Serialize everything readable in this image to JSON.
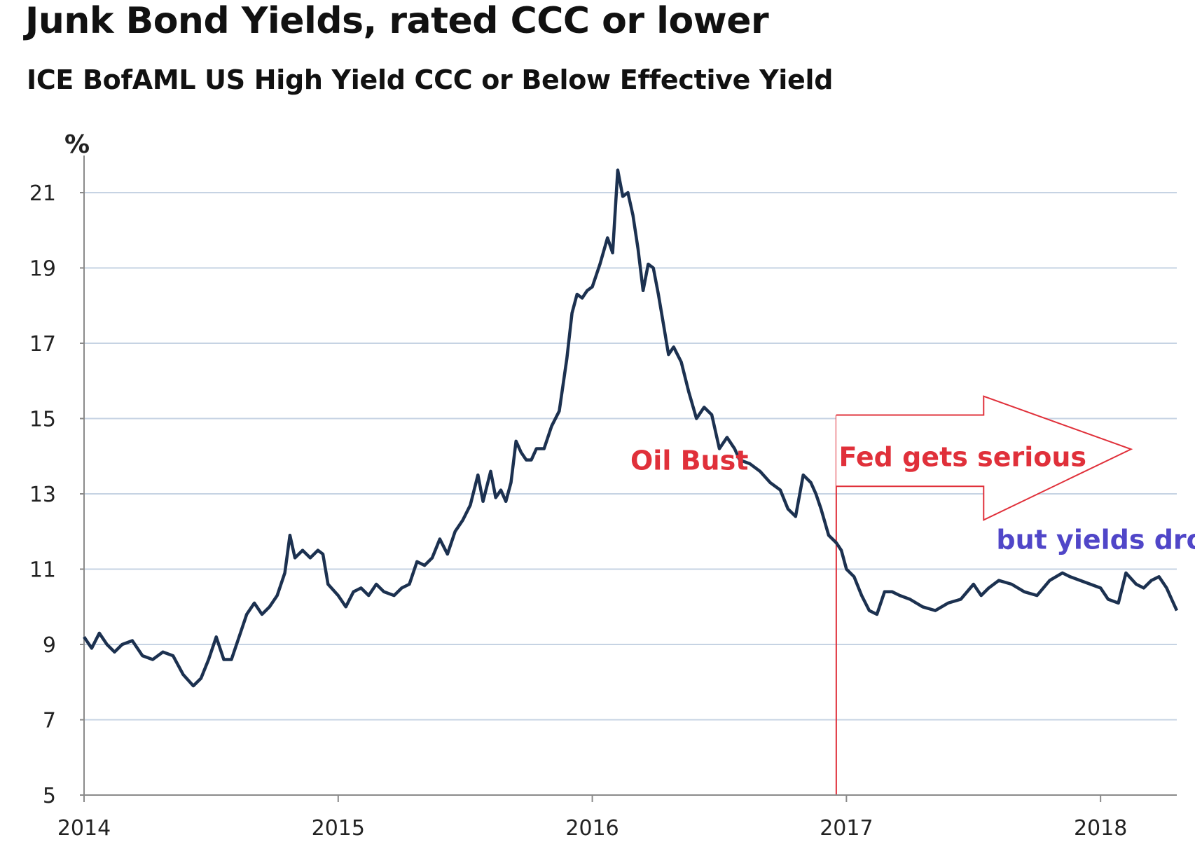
{
  "chart_data": {
    "type": "line",
    "title": "Junk Bond Yields, rated CCC or lower",
    "subtitle": "ICE BofAML US High Yield CCC or Below Effective Yield",
    "ylabel": "%",
    "xlabel": "",
    "ylim": [
      5,
      21.8
    ],
    "yticks": [
      5,
      7,
      9,
      11,
      13,
      15,
      17,
      19,
      21
    ],
    "xlim": [
      2014.0,
      2018.3
    ],
    "xticks": [
      2014,
      2015,
      2016,
      2017,
      2018
    ],
    "grid": true,
    "colors": {
      "line": "#1c3150",
      "grid": "#c6d3e3",
      "axis": "#8a8a8a",
      "fed": "#e0303a",
      "drop": "#5046c8"
    },
    "series": [
      {
        "x": [
          2014.0,
          2014.03,
          2014.06,
          2014.09,
          2014.12,
          2014.15,
          2014.19,
          2014.23,
          2014.27,
          2014.31,
          2014.35,
          2014.39,
          2014.43,
          2014.46,
          2014.49,
          2014.52,
          2014.55,
          2014.58,
          2014.61,
          2014.64,
          2014.67,
          2014.7,
          2014.73,
          2014.76,
          2014.79,
          2014.81,
          2014.83,
          2014.86,
          2014.89,
          2014.92,
          2014.94,
          2014.96,
          2015.0,
          2015.03,
          2015.06,
          2015.09,
          2015.12,
          2015.15,
          2015.18,
          2015.22,
          2015.25,
          2015.28,
          2015.31,
          2015.34,
          2015.37,
          2015.4,
          2015.43,
          2015.46,
          2015.49,
          2015.52,
          2015.55,
          2015.57,
          2015.6,
          2015.62,
          2015.64,
          2015.66,
          2015.68,
          2015.7,
          2015.72,
          2015.74,
          2015.76,
          2015.78,
          2015.81,
          2015.84,
          2015.87,
          2015.9,
          2015.92,
          2015.94,
          2015.96,
          2015.98,
          2016.0,
          2016.03,
          2016.06,
          2016.08,
          2016.1,
          2016.12,
          2016.14,
          2016.16,
          2016.18,
          2016.2,
          2016.22,
          2016.24,
          2016.26,
          2016.28,
          2016.3,
          2016.32,
          2016.35,
          2016.38,
          2016.41,
          2016.44,
          2016.47,
          2016.5,
          2016.53,
          2016.56,
          2016.58,
          2016.62,
          2016.66,
          2016.7,
          2016.74,
          2016.77,
          2016.8,
          2016.83,
          2016.86,
          2016.88,
          2016.9,
          2016.93,
          2016.96,
          2016.98,
          2017.0,
          2017.03,
          2017.06,
          2017.09,
          2017.12,
          2017.15,
          2017.18,
          2017.21,
          2017.25,
          2017.3,
          2017.35,
          2017.4,
          2017.45,
          2017.5,
          2017.53,
          2017.56,
          2017.6,
          2017.65,
          2017.7,
          2017.75,
          2017.8,
          2017.85,
          2017.88,
          2017.92,
          2017.96,
          2018.0,
          2018.03,
          2018.07,
          2018.1,
          2018.14,
          2018.17,
          2018.2,
          2018.23,
          2018.26,
          2018.28,
          2018.3
        ],
        "values": [
          9.2,
          8.9,
          9.3,
          9.0,
          8.8,
          9.0,
          9.1,
          8.7,
          8.6,
          8.8,
          8.7,
          8.2,
          7.9,
          8.1,
          8.6,
          9.2,
          8.6,
          8.6,
          9.2,
          9.8,
          10.1,
          9.8,
          10.0,
          10.3,
          10.9,
          11.9,
          11.3,
          11.5,
          11.3,
          11.5,
          11.4,
          10.6,
          10.3,
          10.0,
          10.4,
          10.5,
          10.3,
          10.6,
          10.4,
          10.3,
          10.5,
          10.6,
          11.2,
          11.1,
          11.3,
          11.8,
          11.4,
          12.0,
          12.3,
          12.7,
          13.5,
          12.8,
          13.6,
          12.9,
          13.1,
          12.8,
          13.3,
          14.4,
          14.1,
          13.9,
          13.9,
          14.2,
          14.2,
          14.8,
          15.2,
          16.6,
          17.8,
          18.3,
          18.2,
          18.4,
          18.5,
          19.1,
          19.8,
          19.4,
          21.6,
          20.9,
          21.0,
          20.4,
          19.5,
          18.4,
          19.1,
          19.0,
          18.3,
          17.5,
          16.7,
          16.9,
          16.5,
          15.7,
          15.0,
          15.3,
          15.1,
          14.2,
          14.5,
          14.2,
          13.9,
          13.8,
          13.6,
          13.3,
          13.1,
          12.6,
          12.4,
          13.5,
          13.3,
          13.0,
          12.6,
          11.9,
          11.7,
          11.5,
          11.0,
          10.8,
          10.3,
          9.9,
          9.8,
          10.4,
          10.4,
          10.3,
          10.2,
          10.0,
          9.9,
          10.1,
          10.2,
          10.6,
          10.3,
          10.5,
          10.7,
          10.6,
          10.4,
          10.3,
          10.7,
          10.9,
          10.8,
          10.7,
          10.6,
          10.5,
          10.2,
          10.1,
          10.9,
          10.6,
          10.5,
          10.7,
          10.8,
          10.5,
          10.2,
          9.9
        ]
      }
    ],
    "annotations": [
      {
        "text": "Oil Bust",
        "x": 2016.15,
        "y": 13.9,
        "color": "#e0303a"
      },
      {
        "text": "Fed gets serious",
        "x": 2016.97,
        "y": 14.0,
        "color": "#e0303a",
        "shape": "right-arrow"
      },
      {
        "text": "but yields drop",
        "x": 2017.59,
        "y": 11.8,
        "color": "#5046c8"
      }
    ],
    "fed_line_x": 2016.96
  }
}
